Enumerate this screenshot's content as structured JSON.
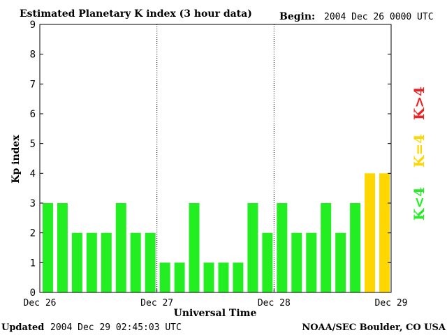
{
  "header": {
    "title": "Estimated Planetary K index (3 hour data)",
    "begin_label": "Begin:",
    "begin_value": "2004 Dec 26 0000 UTC"
  },
  "footer": {
    "updated_label": "Updated",
    "updated_value": "2004 Dec 29 02:45:03 UTC",
    "source": "NOAA/SEC Boulder, CO USA"
  },
  "legend": {
    "k_gt_4": "K>4",
    "k_eq_4": "K=4",
    "k_lt_4": "K<4"
  },
  "colors": {
    "k_lt_4": "#22ee22",
    "k_eq_4": "#ffd700",
    "k_gt_4": "#ee2222",
    "axis": "#000000"
  },
  "chart_data": {
    "type": "bar",
    "title": "Estimated Planetary K index (3 hour data)",
    "xlabel": "Universal Time",
    "ylabel": "Kp index",
    "ylim": [
      0,
      9
    ],
    "yticks": [
      "0",
      "1",
      "2",
      "3",
      "4",
      "5",
      "6",
      "7",
      "8",
      "9"
    ],
    "xticks": [
      "Dec 26",
      "Dec 27",
      "Dec 28",
      "Dec 29"
    ],
    "day_dividers": [
      "Dec 27",
      "Dec 28"
    ],
    "values": [
      3,
      3,
      2,
      2,
      2,
      3,
      2,
      2,
      1,
      1,
      3,
      1,
      1,
      1,
      3,
      2,
      3,
      2,
      2,
      3,
      2,
      3,
      4,
      4
    ],
    "grid": false
  }
}
